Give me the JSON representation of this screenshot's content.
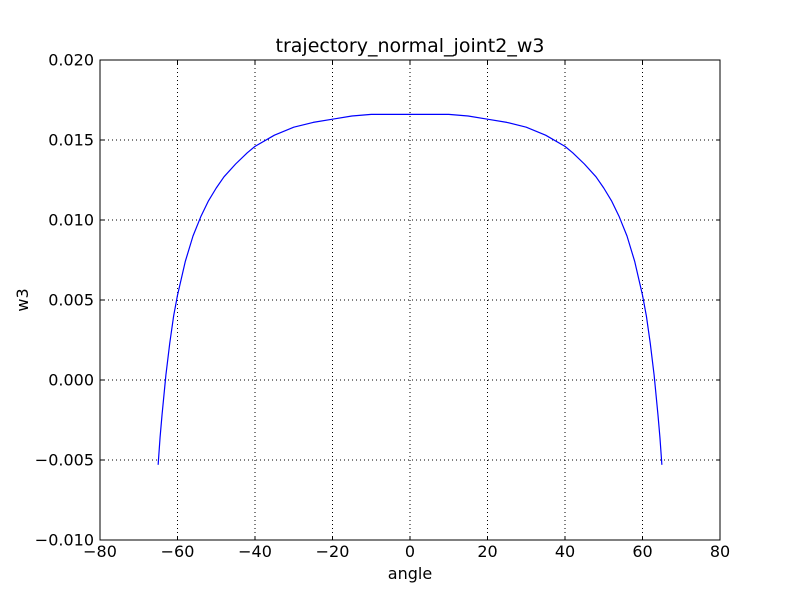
{
  "chart_data": {
    "type": "line",
    "title": "trajectory_normal_joint2_w3",
    "xlabel": "angle",
    "ylabel": "w3",
    "xlim": [
      -80,
      80
    ],
    "ylim": [
      -0.01,
      0.02
    ],
    "xticks": [
      -80,
      -60,
      -40,
      -20,
      0,
      20,
      40,
      60,
      80
    ],
    "xtick_labels": [
      "−80",
      "−60",
      "−40",
      "−20",
      "0",
      "20",
      "40",
      "60",
      "80"
    ],
    "yticks": [
      -0.01,
      -0.005,
      0.0,
      0.005,
      0.01,
      0.015,
      0.02
    ],
    "ytick_labels": [
      "−0.010",
      "−0.005",
      "0.000",
      "0.005",
      "0.010",
      "0.015",
      "0.020"
    ],
    "grid": true,
    "series": [
      {
        "color": "#0000ff",
        "x": [
          -65,
          -64.5,
          -64,
          -63,
          -62,
          -61,
          -60,
          -58,
          -56,
          -54,
          -52,
          -50,
          -48,
          -45,
          -42,
          -40,
          -35,
          -30,
          -25,
          -20,
          -15,
          -10,
          -5,
          0,
          5,
          10,
          15,
          20,
          25,
          30,
          35,
          40,
          42,
          45,
          48,
          50,
          52,
          54,
          56,
          58,
          60,
          61,
          62,
          63,
          64,
          64.5,
          65
        ],
        "y": [
          -0.0053,
          -0.0036,
          -0.0022,
          0.0003,
          0.0023,
          0.004,
          0.0053,
          0.0074,
          0.009,
          0.0102,
          0.0112,
          0.012,
          0.0127,
          0.0135,
          0.0142,
          0.0146,
          0.0153,
          0.0158,
          0.0161,
          0.0163,
          0.0165,
          0.0166,
          0.0166,
          0.0166,
          0.0166,
          0.0166,
          0.0165,
          0.0163,
          0.0161,
          0.0158,
          0.0153,
          0.0146,
          0.0142,
          0.0135,
          0.0127,
          0.012,
          0.0112,
          0.0102,
          0.009,
          0.0074,
          0.0053,
          0.004,
          0.0023,
          0.0003,
          -0.0022,
          -0.0036,
          -0.0053
        ]
      }
    ]
  }
}
